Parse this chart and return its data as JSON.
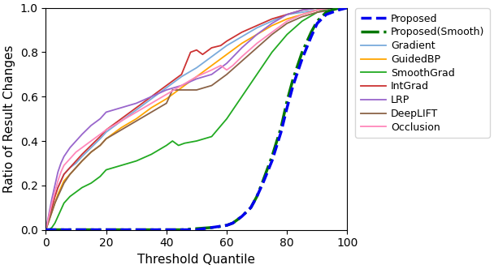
{
  "title": "",
  "xlabel": "Threshold Quantile",
  "ylabel": "Ratio of Result Changes",
  "xlim": [
    0,
    100
  ],
  "ylim": [
    0,
    1.0
  ],
  "xticks": [
    0,
    20,
    40,
    60,
    80,
    100
  ],
  "yticks": [
    0.0,
    0.2,
    0.4,
    0.6,
    0.8,
    1.0
  ],
  "proposed_x": [
    0,
    5,
    10,
    15,
    20,
    25,
    30,
    35,
    40,
    45,
    50,
    55,
    60,
    62,
    65,
    68,
    70,
    72,
    75,
    78,
    80,
    82,
    85,
    88,
    90,
    93,
    95,
    97,
    100
  ],
  "proposed_y": [
    0,
    0,
    0,
    0,
    0,
    0,
    0,
    0,
    0,
    0,
    0,
    0.01,
    0.02,
    0.03,
    0.06,
    0.1,
    0.15,
    0.21,
    0.31,
    0.44,
    0.55,
    0.65,
    0.77,
    0.87,
    0.93,
    0.97,
    0.98,
    0.99,
    1.0
  ],
  "proposed_smooth_x": [
    0,
    5,
    10,
    15,
    20,
    25,
    30,
    35,
    40,
    45,
    50,
    55,
    58,
    60,
    62,
    65,
    68,
    70,
    72,
    75,
    78,
    80,
    82,
    85,
    88,
    90,
    93,
    95,
    97,
    100
  ],
  "proposed_smooth_y": [
    0,
    0,
    0,
    0,
    0,
    0,
    0,
    0,
    0,
    0,
    0.005,
    0.01,
    0.015,
    0.02,
    0.03,
    0.06,
    0.1,
    0.15,
    0.22,
    0.33,
    0.46,
    0.58,
    0.68,
    0.8,
    0.89,
    0.94,
    0.98,
    0.99,
    1.0,
    1.0
  ],
  "gradient_x": [
    0,
    1,
    2,
    3,
    4,
    5,
    6,
    8,
    10,
    12,
    15,
    18,
    20,
    25,
    30,
    35,
    40,
    45,
    50,
    55,
    60,
    65,
    70,
    75,
    80,
    85,
    90,
    95,
    100
  ],
  "gradient_y": [
    0,
    0.05,
    0.1,
    0.15,
    0.19,
    0.22,
    0.25,
    0.28,
    0.3,
    0.33,
    0.37,
    0.41,
    0.44,
    0.49,
    0.54,
    0.59,
    0.64,
    0.69,
    0.73,
    0.78,
    0.83,
    0.87,
    0.91,
    0.94,
    0.97,
    0.98,
    0.99,
    1.0,
    1.0
  ],
  "guidedbp_x": [
    0,
    1,
    2,
    3,
    4,
    5,
    6,
    8,
    10,
    12,
    15,
    18,
    20,
    25,
    30,
    35,
    40,
    45,
    50,
    55,
    60,
    65,
    70,
    75,
    80,
    85,
    90,
    95,
    100
  ],
  "guidedbp_y": [
    0,
    0.04,
    0.08,
    0.12,
    0.16,
    0.19,
    0.22,
    0.25,
    0.28,
    0.31,
    0.35,
    0.38,
    0.41,
    0.46,
    0.5,
    0.55,
    0.59,
    0.64,
    0.69,
    0.74,
    0.79,
    0.84,
    0.88,
    0.92,
    0.95,
    0.97,
    0.99,
    1.0,
    1.0
  ],
  "smoothgrad_x": [
    0,
    1,
    2,
    3,
    4,
    5,
    6,
    8,
    10,
    12,
    15,
    18,
    20,
    25,
    30,
    35,
    40,
    42,
    44,
    46,
    50,
    55,
    60,
    65,
    70,
    75,
    80,
    85,
    90,
    95,
    100
  ],
  "smoothgrad_y": [
    0,
    0.0,
    0.01,
    0.03,
    0.06,
    0.09,
    0.12,
    0.15,
    0.17,
    0.19,
    0.21,
    0.24,
    0.27,
    0.29,
    0.31,
    0.34,
    0.38,
    0.4,
    0.38,
    0.39,
    0.4,
    0.42,
    0.5,
    0.6,
    0.7,
    0.8,
    0.88,
    0.94,
    0.98,
    1.0,
    1.0
  ],
  "intgrad_x": [
    0,
    1,
    2,
    3,
    4,
    5,
    6,
    8,
    10,
    12,
    15,
    18,
    20,
    25,
    30,
    35,
    40,
    45,
    48,
    50,
    52,
    55,
    58,
    60,
    65,
    70,
    75,
    80,
    85,
    90,
    95,
    100
  ],
  "intgrad_y": [
    0,
    0.05,
    0.1,
    0.15,
    0.19,
    0.22,
    0.25,
    0.28,
    0.31,
    0.34,
    0.38,
    0.42,
    0.45,
    0.5,
    0.55,
    0.6,
    0.65,
    0.7,
    0.8,
    0.81,
    0.79,
    0.82,
    0.83,
    0.85,
    0.89,
    0.92,
    0.95,
    0.97,
    0.99,
    1.0,
    1.0,
    1.0
  ],
  "lrp_x": [
    0,
    1,
    2,
    3,
    4,
    5,
    6,
    8,
    10,
    12,
    15,
    18,
    20,
    25,
    30,
    35,
    40,
    45,
    50,
    55,
    60,
    65,
    70,
    75,
    80,
    85,
    90,
    95,
    100
  ],
  "lrp_y": [
    0,
    0.07,
    0.14,
    0.2,
    0.26,
    0.3,
    0.33,
    0.37,
    0.4,
    0.43,
    0.47,
    0.5,
    0.53,
    0.55,
    0.57,
    0.6,
    0.63,
    0.65,
    0.68,
    0.7,
    0.75,
    0.82,
    0.88,
    0.93,
    0.97,
    0.99,
    1.0,
    1.0,
    1.0
  ],
  "deeplift_x": [
    0,
    1,
    2,
    3,
    4,
    5,
    6,
    8,
    10,
    12,
    15,
    18,
    20,
    25,
    30,
    35,
    40,
    42,
    44,
    46,
    50,
    55,
    60,
    65,
    70,
    75,
    80,
    85,
    90,
    95,
    100
  ],
  "deeplift_y": [
    0,
    0.04,
    0.08,
    0.12,
    0.15,
    0.18,
    0.21,
    0.25,
    0.28,
    0.31,
    0.35,
    0.38,
    0.41,
    0.45,
    0.49,
    0.53,
    0.57,
    0.63,
    0.63,
    0.63,
    0.63,
    0.65,
    0.7,
    0.76,
    0.82,
    0.88,
    0.93,
    0.96,
    0.98,
    0.99,
    1.0
  ],
  "occlusion_x": [
    0,
    1,
    2,
    3,
    4,
    5,
    6,
    8,
    10,
    12,
    15,
    18,
    20,
    25,
    30,
    35,
    40,
    45,
    50,
    55,
    58,
    60,
    62,
    65,
    70,
    75,
    80,
    85,
    90,
    95,
    100
  ],
  "occlusion_y": [
    0,
    0.06,
    0.12,
    0.17,
    0.22,
    0.26,
    0.29,
    0.32,
    0.35,
    0.37,
    0.4,
    0.43,
    0.45,
    0.49,
    0.53,
    0.57,
    0.61,
    0.65,
    0.69,
    0.72,
    0.74,
    0.72,
    0.74,
    0.78,
    0.84,
    0.89,
    0.94,
    0.97,
    0.99,
    1.0,
    1.0
  ],
  "colors": {
    "proposed": "#0000EE",
    "proposed_smooth": "#007700",
    "gradient": "#7AABDC",
    "guidedbp": "#FFA500",
    "smoothgrad": "#22AA22",
    "intgrad": "#CC3333",
    "lrp": "#9966CC",
    "deeplift": "#8B6347",
    "occlusion": "#FF88BB"
  }
}
